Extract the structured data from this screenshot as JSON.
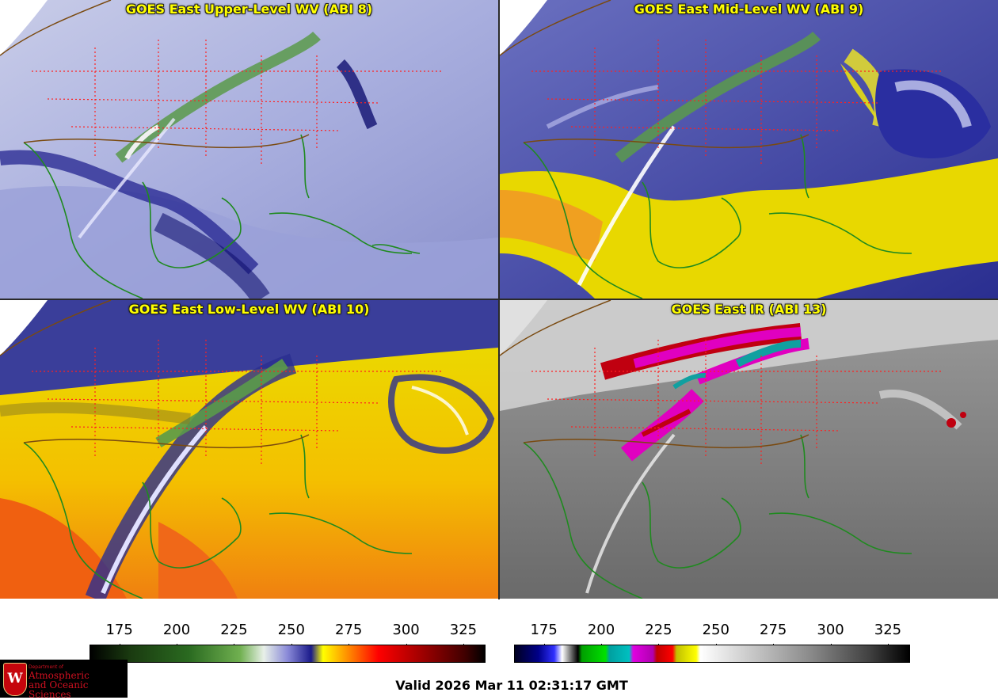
{
  "panels": [
    {
      "title": "GOES East Upper-Level WV (ABI 8)",
      "palette": "wv"
    },
    {
      "title": "GOES East Mid-Level WV (ABI 9)",
      "palette": "wv"
    },
    {
      "title": "GOES East Low-Level WV (ABI 10)",
      "palette": "wv"
    },
    {
      "title": "GOES East IR (ABI 13)",
      "palette": "ir"
    }
  ],
  "colorbars": {
    "wv": {
      "ticks": [
        "175",
        "200",
        "225",
        "250",
        "275",
        "300",
        "325"
      ],
      "range": [
        162,
        334
      ]
    },
    "ir": {
      "ticks": [
        "175",
        "200",
        "225",
        "250",
        "275",
        "300",
        "325"
      ],
      "range": [
        162,
        334
      ]
    }
  },
  "logo": {
    "line1": "Department of",
    "line2": "Atmospheric",
    "line3": "and Oceanic Sciences",
    "seal_letter": "W"
  },
  "valid_time": "Valid 2026 Mar 11 02:31:17 GMT",
  "colors": {
    "title": "#ffff00",
    "state_borders": "#ff2020",
    "country_borders": "#7a4a10",
    "coast": "#1f8a1f"
  }
}
